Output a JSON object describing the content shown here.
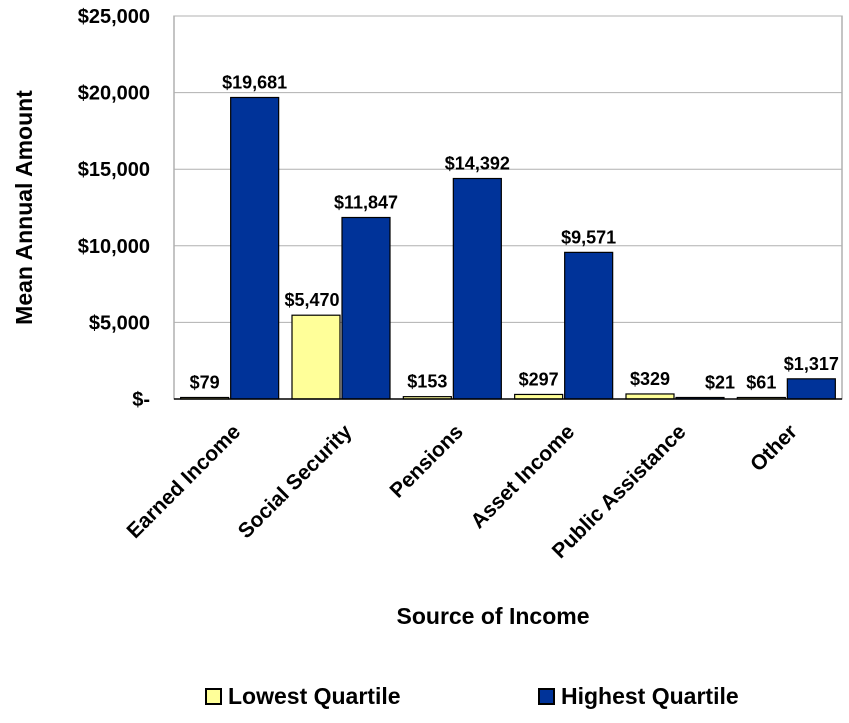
{
  "chart_data": {
    "type": "bar",
    "categories": [
      "Earned Income",
      "Social Security",
      "Pensions",
      "Asset Income",
      "Public Assistance",
      "Other"
    ],
    "series": [
      {
        "name": "Lowest Quartile",
        "values": [
          79,
          5470,
          153,
          297,
          329,
          61
        ],
        "labels": [
          "$79",
          "$5,470",
          "$153",
          "$297",
          "$329",
          "$61"
        ],
        "color": "#ffff99"
      },
      {
        "name": "Highest Quartile",
        "values": [
          19681,
          11847,
          14392,
          9571,
          21,
          1317
        ],
        "labels": [
          "$19,681",
          "$11,847",
          "$14,392",
          "$9,571",
          "$21",
          "$1,317"
        ],
        "color": "#003399"
      }
    ],
    "xlabel": "Source of Income",
    "ylabel": "Mean Annual Amount",
    "ylim": [
      0,
      25000
    ],
    "yticks": [
      0,
      5000,
      10000,
      15000,
      20000,
      25000
    ],
    "ytick_labels": [
      "$-",
      "$5,000",
      "$10,000",
      "$15,000",
      "$20,000",
      "$25,000"
    ],
    "grid": true,
    "legend_position": "bottom"
  }
}
